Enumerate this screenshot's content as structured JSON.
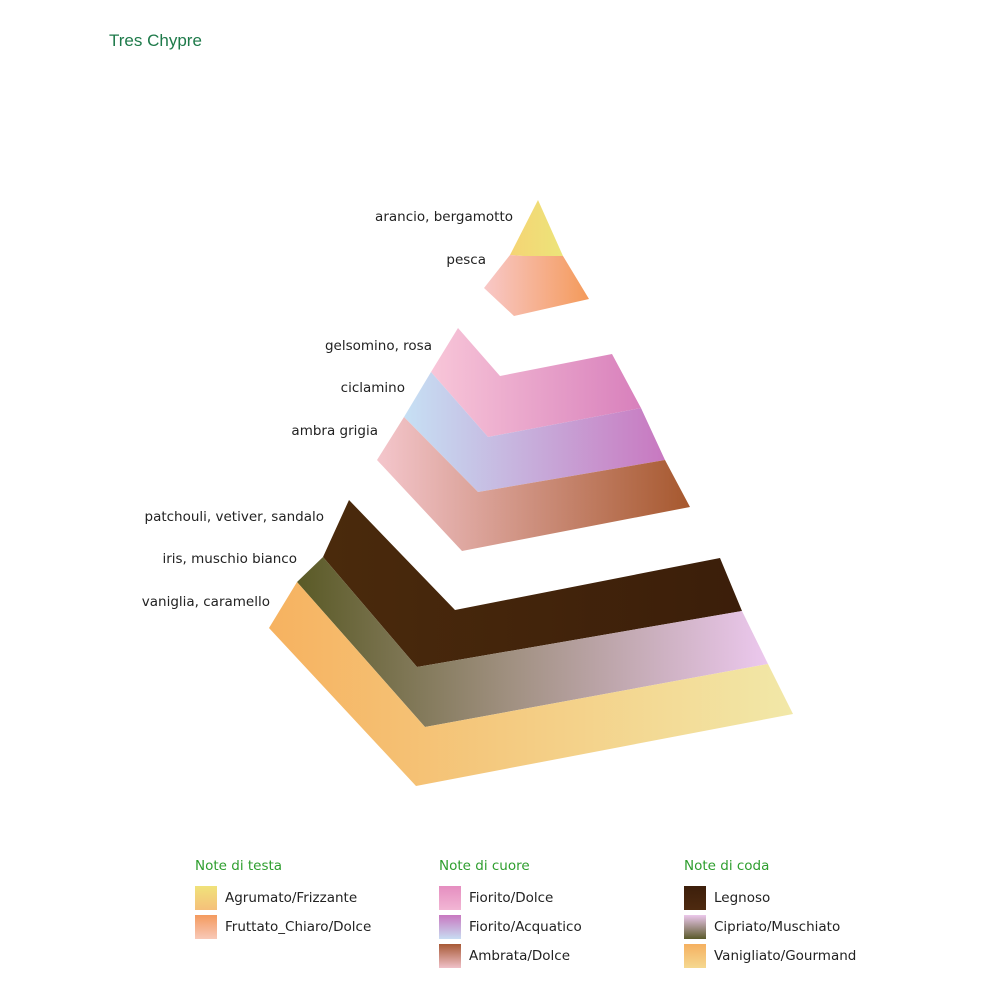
{
  "title": "Tres Chypre",
  "tiers": {
    "top": {
      "labels": [
        "arancio, bergamotto",
        "pesca"
      ]
    },
    "middle": {
      "labels": [
        "gelsomino, rosa",
        "ciclamino",
        "ambra grigia"
      ]
    },
    "bottom": {
      "labels": [
        "patchouli, vetiver, sandalo",
        "iris, muschio bianco",
        "vaniglia, caramello"
      ]
    }
  },
  "legend": [
    {
      "heading": "Note di testa",
      "items": [
        {
          "label": "Agrumato/Frizzante",
          "colors": [
            "#f0e27a",
            "#f5c07a"
          ]
        },
        {
          "label": "Fruttato_Chiaro/Dolce",
          "colors": [
            "#f49a5e",
            "#f8c9b8"
          ]
        }
      ]
    },
    {
      "heading": "Note di cuore",
      "items": [
        {
          "label": "Fiorito/Dolce",
          "colors": [
            "#e58ec0",
            "#f2b6d4"
          ]
        },
        {
          "label": "Fiorito/Acquatico",
          "colors": [
            "#c878c0",
            "#c8dcf2"
          ]
        },
        {
          "label": "Ambrata/Dolce",
          "colors": [
            "#a85a36",
            "#f0c0c8"
          ]
        }
      ]
    },
    {
      "heading": "Note di coda",
      "items": [
        {
          "label": "Legnoso",
          "colors": [
            "#3d1f0b",
            "#4e2a10"
          ]
        },
        {
          "label": "Cipriato/Muschiato",
          "colors": [
            "#ecc8ec",
            "#5a5a2a"
          ]
        },
        {
          "label": "Vanigliato/Gourmand",
          "colors": [
            "#f5b060",
            "#f5d890"
          ]
        }
      ]
    }
  ]
}
